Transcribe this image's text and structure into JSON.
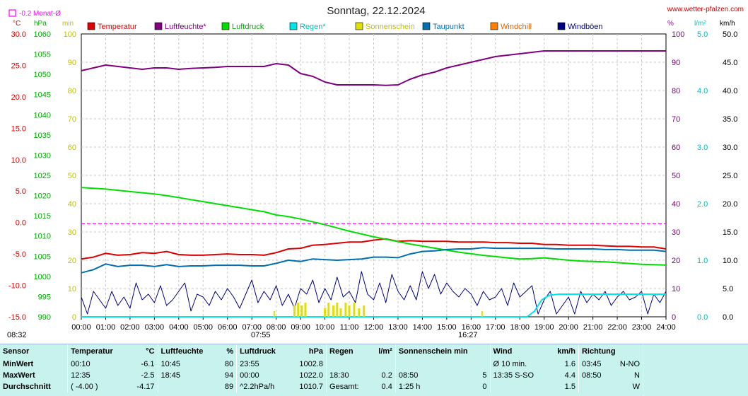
{
  "title": "Sonntag, 22.12.2024",
  "site": "www.wetter-pfalzen.com",
  "month_avg": "-0.2 Monat-Ø",
  "colors": {
    "temperature": "#dd0000",
    "humidity": "#800080",
    "pressure": "#00dd00",
    "rain": "#00e5e5",
    "sunshine": "#e0e000",
    "dewpoint": "#0070b0",
    "windchill": "#ff8000",
    "gusts": "#000080",
    "monthavg": "#ff00ff"
  },
  "axis_units": {
    "temp": "°C",
    "pressure": "hPa",
    "minutes": "min",
    "percent": "%",
    "rain": "l/m²",
    "wind": "km/h"
  },
  "markers": {
    "left": "08:32",
    "sunrise": "07:55",
    "sunset": "16:27"
  },
  "chart_data": {
    "type": "line",
    "title": "Sonntag, 22.12.2024",
    "x_ticks": [
      "00:00",
      "01:00",
      "02:00",
      "03:00",
      "04:00",
      "05:00",
      "06:00",
      "07:00",
      "08:00",
      "09:00",
      "10:00",
      "11:00",
      "12:00",
      "13:00",
      "14:00",
      "15:00",
      "16:00",
      "17:00",
      "18:00",
      "19:00",
      "20:00",
      "21:00",
      "22:00",
      "23:00",
      "24:00"
    ],
    "axes": {
      "temp": {
        "label": "°C",
        "range": [
          -15,
          30
        ],
        "ticks": [
          "30.0",
          "25.0",
          "20.0",
          "15.0",
          "10.0",
          "5.0",
          "0.0",
          "-5.0",
          "-10.0",
          "-15.0"
        ]
      },
      "pressure": {
        "label": "hPa",
        "range": [
          990,
          1060
        ],
        "ticks": [
          "1060",
          "1055",
          "1050",
          "1045",
          "1040",
          "1035",
          "1030",
          "1025",
          "1020",
          "1015",
          "1010",
          "1005",
          "1000",
          "995",
          "990"
        ]
      },
      "minutes": {
        "label": "min",
        "range": [
          0,
          100
        ],
        "ticks": [
          "100",
          "90",
          "80",
          "70",
          "60",
          "50",
          "40",
          "30",
          "20",
          "10",
          "0"
        ]
      },
      "percent": {
        "label": "%",
        "range": [
          0,
          100
        ],
        "ticks": [
          "100",
          "90",
          "80",
          "70",
          "60",
          "50",
          "40",
          "30",
          "20",
          "10",
          "0"
        ]
      },
      "rain": {
        "label": "l/m²",
        "range": [
          0,
          5
        ],
        "ticks": [
          "5.0",
          "4.0",
          "3.0",
          "2.0",
          "1.0",
          "0.0"
        ]
      },
      "wind": {
        "label": "km/h",
        "range": [
          0,
          50
        ],
        "ticks": [
          "50.0",
          "45.0",
          "40.0",
          "35.0",
          "30.0",
          "25.0",
          "20.0",
          "15.0",
          "10.0",
          "5.0",
          "0.0"
        ]
      }
    },
    "legend": [
      "Temperatur",
      "Luftfeuchte*",
      "Luftdruck",
      "Regen*",
      "Sonnenschein",
      "Taupunkt",
      "Windchill",
      "Windböen"
    ],
    "series": [
      {
        "name": "Temperatur",
        "axis": "temp",
        "x": [
          0,
          0.5,
          1,
          1.5,
          2,
          2.5,
          3,
          3.5,
          4,
          4.5,
          5,
          5.5,
          6,
          6.5,
          7,
          7.5,
          8,
          8.5,
          9,
          9.5,
          10,
          10.5,
          11,
          11.5,
          12,
          12.5,
          13,
          13.5,
          14,
          14.5,
          15,
          15.5,
          16,
          16.5,
          17,
          17.5,
          18,
          18.5,
          19,
          19.5,
          20,
          20.5,
          21,
          21.5,
          22,
          22.5,
          23,
          23.5,
          24
        ],
        "y": [
          -5.8,
          -5.5,
          -4.9,
          -5.2,
          -5.1,
          -4.8,
          -4.9,
          -4.6,
          -5.1,
          -5.2,
          -5.2,
          -5.1,
          -5.0,
          -5.1,
          -5.1,
          -5.2,
          -4.8,
          -4.2,
          -4.1,
          -3.6,
          -3.5,
          -3.3,
          -3.1,
          -3.1,
          -2.8,
          -2.6,
          -3.0,
          -2.9,
          -3.0,
          -3.0,
          -3.0,
          -3.1,
          -3.1,
          -3.1,
          -3.2,
          -3.2,
          -3.3,
          -3.3,
          -3.5,
          -3.5,
          -3.6,
          -3.6,
          -3.6,
          -3.7,
          -3.8,
          -3.8,
          -3.9,
          -3.9,
          -4.2
        ]
      },
      {
        "name": "Luftfeuchte*",
        "axis": "percent",
        "x": [
          0,
          0.5,
          1,
          1.5,
          2,
          2.5,
          3,
          3.5,
          4,
          4.5,
          5,
          5.5,
          6,
          6.5,
          7,
          7.5,
          8,
          8.5,
          9,
          9.5,
          10,
          10.5,
          11,
          11.5,
          12,
          12.5,
          13,
          13.5,
          14,
          14.5,
          15,
          15.5,
          16,
          16.5,
          17,
          17.5,
          18,
          18.5,
          19,
          19.5,
          20,
          20.5,
          21,
          21.5,
          22,
          22.5,
          23,
          23.5,
          24
        ],
        "y": [
          87,
          88,
          89,
          88.5,
          88,
          87.5,
          88,
          88,
          87.5,
          87.8,
          88,
          88.2,
          88.5,
          88.5,
          88.5,
          88.5,
          89.5,
          89,
          86,
          85,
          83,
          82,
          82,
          82,
          82,
          81.8,
          82,
          84,
          85.5,
          86.5,
          88,
          89,
          90,
          91,
          92,
          92.5,
          93,
          93.5,
          94,
          94,
          94,
          94,
          94,
          94,
          94,
          94,
          94,
          94,
          94
        ]
      },
      {
        "name": "Luftdruck",
        "axis": "pressure",
        "x": [
          0,
          0.5,
          1,
          1.5,
          2,
          2.5,
          3,
          3.5,
          4,
          4.5,
          5,
          5.5,
          6,
          6.5,
          7,
          7.5,
          8,
          8.5,
          9,
          9.5,
          10,
          10.5,
          11,
          11.5,
          12,
          12.5,
          13,
          13.5,
          14,
          14.5,
          15,
          15.5,
          16,
          16.5,
          17,
          17.5,
          18,
          18.5,
          19,
          19.5,
          20,
          20.5,
          21,
          21.5,
          22,
          22.5,
          23,
          23.5,
          24
        ],
        "y": [
          1022.0,
          1021.8,
          1021.6,
          1021.3,
          1021.0,
          1020.7,
          1020.4,
          1020.0,
          1019.5,
          1019.0,
          1018.5,
          1018.0,
          1017.5,
          1017.0,
          1016.5,
          1016.0,
          1015.2,
          1014.8,
          1014.2,
          1013.5,
          1012.8,
          1012.0,
          1011.2,
          1010.5,
          1009.8,
          1009.2,
          1008.6,
          1008.0,
          1007.5,
          1007.0,
          1006.5,
          1006.0,
          1005.6,
          1005.2,
          1004.9,
          1004.6,
          1004.3,
          1004.4,
          1004.6,
          1004.3,
          1004.0,
          1003.8,
          1003.7,
          1003.6,
          1003.4,
          1003.2,
          1003.0,
          1002.9,
          1002.8
        ]
      },
      {
        "name": "Taupunkt",
        "axis": "temp",
        "x": [
          0,
          0.5,
          1,
          1.5,
          2,
          2.5,
          3,
          3.5,
          4,
          4.5,
          5,
          5.5,
          6,
          6.5,
          7,
          7.5,
          8,
          8.5,
          9,
          9.5,
          10,
          10.5,
          11,
          11.5,
          12,
          12.5,
          13,
          13.5,
          14,
          14.5,
          15,
          15.5,
          16,
          16.5,
          17,
          17.5,
          18,
          18.5,
          19,
          19.5,
          20,
          20.5,
          21,
          21.5,
          22,
          22.5,
          23,
          23.5,
          24
        ],
        "y": [
          -8.0,
          -7.5,
          -6.6,
          -7.0,
          -6.8,
          -6.8,
          -7.0,
          -6.7,
          -7.0,
          -6.9,
          -6.9,
          -6.8,
          -6.8,
          -6.8,
          -6.9,
          -6.9,
          -6.5,
          -6.0,
          -6.2,
          -5.8,
          -5.9,
          -6.0,
          -5.9,
          -5.8,
          -5.5,
          -5.5,
          -5.6,
          -5.0,
          -4.6,
          -4.5,
          -4.3,
          -4.2,
          -4.2,
          -4.0,
          -4.1,
          -4.1,
          -4.1,
          -4.1,
          -4.1,
          -4.2,
          -4.2,
          -4.2,
          -4.2,
          -4.3,
          -4.3,
          -4.4,
          -4.4,
          -4.4,
          -4.6
        ]
      },
      {
        "name": "Windböen",
        "axis": "wind",
        "x": [
          0,
          0.25,
          0.5,
          0.75,
          1,
          1.25,
          1.5,
          1.75,
          2,
          2.25,
          2.5,
          2.75,
          3,
          3.25,
          3.5,
          3.75,
          4,
          4.25,
          4.5,
          4.75,
          5,
          5.25,
          5.5,
          5.75,
          6,
          6.25,
          6.5,
          6.75,
          7,
          7.25,
          7.5,
          7.75,
          8,
          8.25,
          8.5,
          8.75,
          9,
          9.25,
          9.5,
          9.75,
          10,
          10.25,
          10.5,
          10.75,
          11,
          11.25,
          11.5,
          11.75,
          12,
          12.25,
          12.5,
          12.75,
          13,
          13.25,
          13.5,
          13.75,
          14,
          14.25,
          14.5,
          14.75,
          15,
          15.25,
          15.5,
          15.75,
          16,
          16.25,
          16.5,
          16.75,
          17,
          17.25,
          17.5,
          17.75,
          18,
          18.25,
          18.5,
          18.75,
          19,
          19.25,
          19.5,
          19.75,
          20,
          20.25,
          20.5,
          20.75,
          21,
          21.25,
          21.5,
          21.75,
          22,
          22.25,
          22.5,
          22.75,
          23,
          23.25,
          23.5,
          23.75,
          24
        ],
        "y": [
          3.5,
          0.5,
          4.5,
          3.0,
          1.5,
          4.5,
          2.0,
          3.5,
          1.5,
          6.0,
          3.0,
          4.0,
          2.5,
          5.5,
          2.0,
          3.0,
          4.5,
          6.0,
          1.0,
          4.0,
          3.5,
          2.0,
          4.5,
          3.0,
          5.0,
          3.5,
          1.5,
          4.0,
          6.5,
          2.5,
          4.5,
          3.0,
          5.5,
          2.0,
          4.0,
          1.5,
          5.0,
          4.0,
          6.5,
          2.5,
          5.0,
          3.0,
          7.0,
          3.5,
          4.5,
          2.5,
          8.0,
          4.0,
          3.0,
          6.0,
          2.5,
          7.5,
          4.5,
          3.0,
          5.5,
          3.0,
          8.0,
          5.0,
          7.5,
          4.0,
          6.0,
          4.5,
          3.5,
          5.0,
          4.0,
          2.0,
          4.5,
          3.0,
          3.5,
          5.0,
          2.0,
          6.0,
          3.5,
          4.5,
          5.5,
          0.5,
          3.0,
          4.5,
          0.5,
          2.0,
          3.5,
          0.5,
          4.5,
          2.5,
          4.0,
          3.0,
          4.5,
          2.0,
          3.5,
          4.5,
          3.0,
          3.5,
          4.5,
          0.5,
          4.0,
          2.5,
          4.5
        ]
      },
      {
        "name": "Regen*",
        "axis": "rain",
        "x": [
          0,
          18.3,
          18.6,
          18.9,
          19.2,
          19.6,
          20,
          21,
          22,
          23,
          24
        ],
        "y": [
          0,
          0,
          0.1,
          0.3,
          0.38,
          0.4,
          0.4,
          0.4,
          0.4,
          0.4,
          0.4
        ]
      },
      {
        "name": "Sonnenschein",
        "axis": "minutes",
        "kind": "bars",
        "x": [
          8.75,
          8.9,
          9.05,
          9.2,
          10.0,
          10.15,
          10.35,
          10.5,
          10.65,
          10.85,
          11.0,
          11.2,
          11.4,
          11.6
        ],
        "y": [
          4,
          5,
          4,
          5,
          3,
          5,
          4,
          5,
          3,
          5,
          4,
          5,
          3,
          4
        ]
      }
    ]
  },
  "stats": {
    "headers": [
      {
        "label": "Sensor",
        "unit": ""
      },
      {
        "label": "Temperatur",
        "unit": "°C"
      },
      {
        "label": "Luftfeuchte",
        "unit": "%"
      },
      {
        "label": "Luftdruck",
        "unit": "hPa"
      },
      {
        "label": "Regen",
        "unit": "l/m²"
      },
      {
        "label": "Sonnenschein min",
        "unit": ""
      },
      {
        "label": "Wind",
        "unit": "km/h"
      },
      {
        "label": "Richtung",
        "unit": ""
      }
    ],
    "rows": [
      {
        "label": "MinWert",
        "cells": [
          [
            "00:10",
            "-6.1"
          ],
          [
            "10:45",
            "80"
          ],
          [
            "23:55",
            "1002.8"
          ],
          [
            "",
            ""
          ],
          [
            "",
            ""
          ],
          [
            "Ø 10 min.",
            "1.6"
          ],
          [
            "03:45",
            "N-NO"
          ]
        ]
      },
      {
        "label": "MaxWert",
        "cells": [
          [
            "12:35",
            "-2.5"
          ],
          [
            "18:45",
            "94"
          ],
          [
            "00:00",
            "1022.0"
          ],
          [
            "18:30",
            "0.2"
          ],
          [
            "08:50",
            "5"
          ],
          [
            "13:35   S-SO",
            "4.4"
          ],
          [
            "08:50",
            "N"
          ]
        ]
      },
      {
        "label": "Durchschnitt",
        "cells": [
          [
            "( -4.00 )",
            "-4.17"
          ],
          [
            "",
            "89"
          ],
          [
            "^2.2hPa/h",
            "1010.7"
          ],
          [
            "Gesamt:",
            "0.4"
          ],
          [
            "1:25 h",
            "0"
          ],
          [
            "",
            "1.5"
          ],
          [
            "",
            "W"
          ]
        ]
      }
    ]
  }
}
